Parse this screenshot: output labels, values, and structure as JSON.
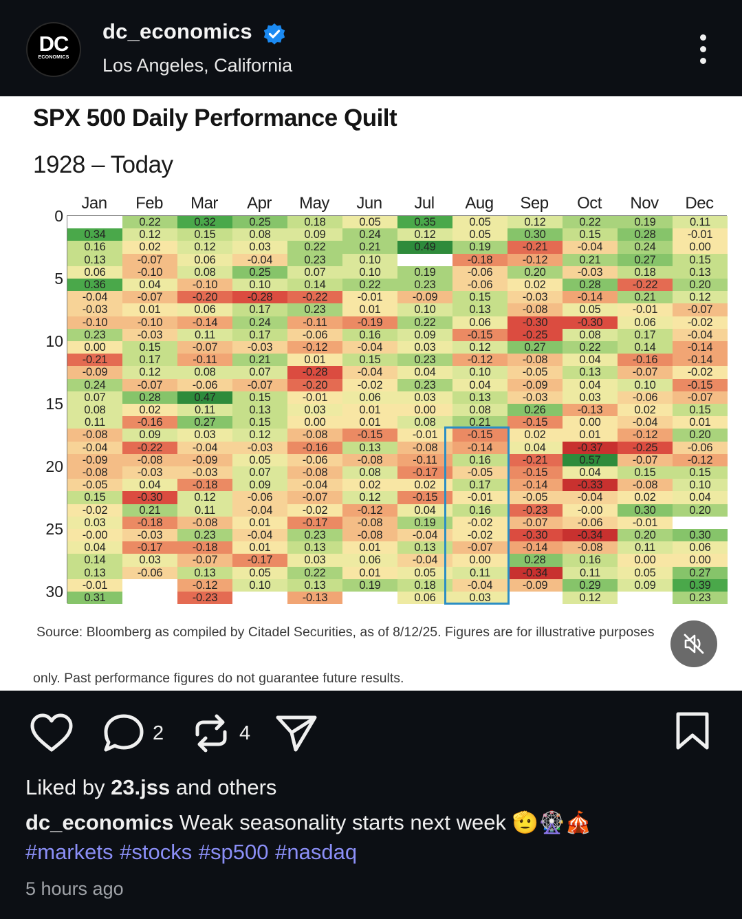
{
  "post": {
    "avatar_text": "DC",
    "avatar_subtext": "ECONOMICS",
    "username": "dc_economics",
    "location": "Los Angeles, California",
    "icon_more": "more-vertical-icon",
    "icon_verified": "verified-badge-icon"
  },
  "chart": {
    "title": "SPX 500 Daily Performance Quilt",
    "subtitle": "1928 – Today",
    "source_line1": "Source: Bloomberg as compiled by Citadel Securities, as of 8/12/25. Figures are for illustrative purposes",
    "source_line2": "only. Past performance figures do not guarantee future results."
  },
  "chart_data": {
    "type": "heatmap",
    "title": "SPX 500 Daily Performance Quilt",
    "subtitle": "1928 – Today",
    "columns": [
      "Jan",
      "Feb",
      "Mar",
      "Apr",
      "May",
      "Jun",
      "Jul",
      "Aug",
      "Sep",
      "Oct",
      "Nov",
      "Dec"
    ],
    "row_axis_ticks": [
      "0",
      "5",
      "10",
      "15",
      "20",
      "25",
      "30"
    ],
    "highlight": "Aug",
    "rows": [
      [
        "",
        "0.22",
        "0.32",
        "0.25",
        "0.18",
        "0.05",
        "0.35",
        "0.05",
        "0.12",
        "0.22",
        "0.19",
        "0.11"
      ],
      [
        "0.34",
        "0.12",
        "0.15",
        "0.08",
        "0.09",
        "0.24",
        "0.12",
        "0.05",
        "0.30",
        "0.15",
        "0.28",
        "-0.01"
      ],
      [
        "0.16",
        "0.02",
        "0.12",
        "0.03",
        "0.22",
        "0.21",
        "0.49",
        "0.19",
        "-0.21",
        "-0.04",
        "0.24",
        "0.00"
      ],
      [
        "0.13",
        "-0.07",
        "0.06",
        "-0.04",
        "0.23",
        "0.10",
        "",
        "-0.18",
        "-0.12",
        "0.21",
        "0.27",
        "0.15"
      ],
      [
        "0.06",
        "-0.10",
        "0.08",
        "0.25",
        "0.07",
        "0.10",
        "0.19",
        "-0.06",
        "0.20",
        "-0.03",
        "0.18",
        "0.13"
      ],
      [
        "0.36",
        "0.04",
        "-0.10",
        "0.10",
        "0.14",
        "0.22",
        "0.23",
        "-0.06",
        "0.02",
        "0.28",
        "-0.22",
        "0.20"
      ],
      [
        "-0.04",
        "-0.07",
        "-0.20",
        "-0.28",
        "-0.22",
        "-0.01",
        "-0.09",
        "0.15",
        "-0.03",
        "-0.14",
        "0.21",
        "0.12"
      ],
      [
        "-0.03",
        "0.01",
        "0.06",
        "0.17",
        "0.23",
        "0.01",
        "0.10",
        "0.13",
        "-0.08",
        "0.05",
        "-0.01",
        "-0.07"
      ],
      [
        "-0.10",
        "-0.10",
        "-0.14",
        "0.24",
        "-0.11",
        "-0.19",
        "0.22",
        "0.06",
        "-0.30",
        "-0.30",
        "0.06",
        "-0.02"
      ],
      [
        "0.23",
        "-0.03",
        "0.11",
        "0.17",
        "-0.06",
        "0.16",
        "0.09",
        "-0.15",
        "-0.25",
        "0.08",
        "0.17",
        "-0.04"
      ],
      [
        "0.00",
        "0.15",
        "-0.07",
        "-0.03",
        "-0.12",
        "-0.04",
        "0.03",
        "0.12",
        "0.27",
        "0.22",
        "0.14",
        "-0.14"
      ],
      [
        "-0.21",
        "0.17",
        "-0.11",
        "0.21",
        "0.01",
        "0.15",
        "0.23",
        "-0.12",
        "-0.08",
        "0.04",
        "-0.16",
        "-0.14"
      ],
      [
        "-0.09",
        "0.12",
        "0.08",
        "0.07",
        "-0.28",
        "-0.04",
        "0.04",
        "0.10",
        "-0.05",
        "0.13",
        "-0.07",
        "-0.02"
      ],
      [
        "0.24",
        "-0.07",
        "-0.06",
        "-0.07",
        "-0.20",
        "-0.02",
        "0.23",
        "0.04",
        "-0.09",
        "0.04",
        "0.10",
        "-0.15"
      ],
      [
        "0.07",
        "0.28",
        "0.47",
        "0.15",
        "-0.01",
        "0.06",
        "0.03",
        "0.13",
        "-0.03",
        "0.03",
        "-0.06",
        "-0.07"
      ],
      [
        "0.08",
        "0.02",
        "0.11",
        "0.13",
        "0.03",
        "0.01",
        "0.00",
        "0.08",
        "0.26",
        "-0.13",
        "0.02",
        "0.15"
      ],
      [
        "0.11",
        "-0.16",
        "0.27",
        "0.15",
        "0.00",
        "0.01",
        "0.08",
        "0.21",
        "-0.15",
        "0.00",
        "-0.04",
        "0.01"
      ],
      [
        "-0.08",
        "0.09",
        "0.03",
        "0.12",
        "-0.08",
        "-0.15",
        "-0.01",
        "-0.15",
        "0.02",
        "0.01",
        "-0.12",
        "0.20"
      ],
      [
        "-0.04",
        "-0.22",
        "-0.04",
        "-0.03",
        "-0.16",
        "0.13",
        "-0.08",
        "-0.14",
        "0.04",
        "-0.37",
        "-0.25",
        "-0.06"
      ],
      [
        "-0.09",
        "-0.08",
        "-0.09",
        "0.05",
        "-0.06",
        "-0.08",
        "-0.11",
        "0.16",
        "-0.21",
        "0.57",
        "-0.07",
        "-0.12"
      ],
      [
        "-0.08",
        "-0.03",
        "-0.03",
        "0.07",
        "-0.08",
        "0.08",
        "-0.17",
        "-0.05",
        "-0.15",
        "0.04",
        "0.15",
        "0.15"
      ],
      [
        "-0.05",
        "0.04",
        "-0.18",
        "0.09",
        "-0.04",
        "0.02",
        "0.02",
        "0.17",
        "-0.14",
        "-0.33",
        "-0.08",
        "0.10"
      ],
      [
        "0.15",
        "-0.30",
        "0.12",
        "-0.06",
        "-0.07",
        "0.12",
        "-0.15",
        "-0.01",
        "-0.05",
        "-0.04",
        "0.02",
        "0.04"
      ],
      [
        "-0.02",
        "0.21",
        "0.11",
        "-0.04",
        "-0.02",
        "-0.12",
        "0.04",
        "0.16",
        "-0.23",
        "-0.00",
        "0.30",
        "0.20"
      ],
      [
        "0.03",
        "-0.18",
        "-0.08",
        "0.01",
        "-0.17",
        "-0.08",
        "0.19",
        "-0.02",
        "-0.07",
        "-0.06",
        "-0.01",
        ""
      ],
      [
        "-0.00",
        "-0.03",
        "0.23",
        "-0.04",
        "0.23",
        "-0.08",
        "-0.04",
        "-0.02",
        "-0.30",
        "-0.34",
        "0.20",
        "0.30"
      ],
      [
        "0.04",
        "-0.17",
        "-0.18",
        "0.01",
        "0.13",
        "0.01",
        "0.13",
        "-0.07",
        "-0.14",
        "-0.08",
        "0.11",
        "0.06"
      ],
      [
        "0.14",
        "0.03",
        "-0.07",
        "-0.17",
        "0.03",
        "0.06",
        "-0.04",
        "0.00",
        "0.28",
        "0.16",
        "0.00",
        "0.00"
      ],
      [
        "0.13",
        "-0.06",
        "0.13",
        "0.05",
        "0.22",
        "0.01",
        "0.05",
        "0.11",
        "-0.34",
        "0.11",
        "0.05",
        "0.27"
      ],
      [
        "-0.01",
        "",
        "-0.12",
        "0.10",
        "0.13",
        "0.19",
        "0.18",
        "-0.04",
        "-0.09",
        "0.29",
        "0.09",
        "0.39"
      ],
      [
        "0.31",
        "",
        "-0.23",
        "",
        "-0.13",
        "",
        "0.06",
        "0.03",
        "",
        "0.12",
        "",
        "0.23"
      ]
    ]
  },
  "actions": {
    "like_icon": "heart-icon",
    "comment_icon": "comment-bubble-icon",
    "comment_count": "2",
    "repost_icon": "repost-icon",
    "repost_count": "4",
    "share_icon": "send-icon",
    "save_icon": "bookmark-icon",
    "mute_icon": "speaker-muted-icon"
  },
  "likes": {
    "prefix": "Liked by ",
    "user": "23.jss",
    "suffix": " and others"
  },
  "caption": {
    "user": "dc_economics",
    "text": " Weak seasonality starts next week 🫡🎡🎪"
  },
  "hashtags": "#markets #stocks #sp500 #nasdaq",
  "timestamp": "5 hours ago"
}
